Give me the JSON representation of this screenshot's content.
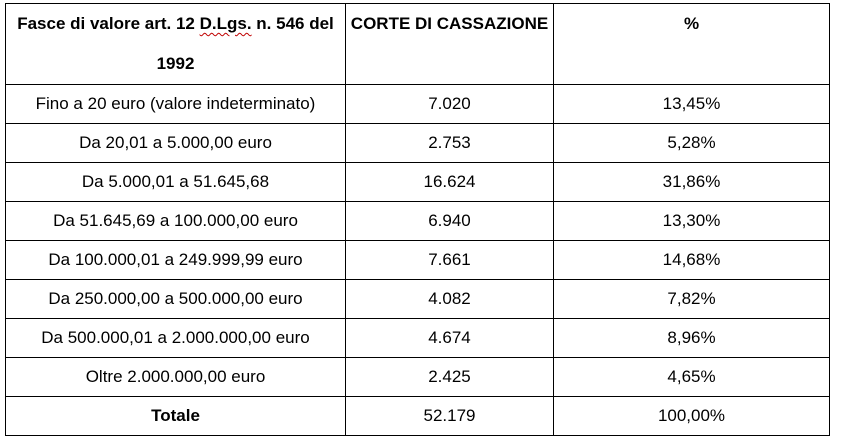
{
  "table": {
    "headers": {
      "col1_pre": "Fasce di valore art. 12 ",
      "col1_underlined": "D.Lgs.",
      "col1_post": " n. 546 del 1992",
      "col2": "CORTE DI CASSAZIONE",
      "col3": "%"
    },
    "rows": [
      {
        "range": "Fino a 20 euro (valore indeterminato)",
        "count": "7.020",
        "pct": "13,45%"
      },
      {
        "range": "Da 20,01 a 5.000,00 euro",
        "count": "2.753",
        "pct": "5,28%"
      },
      {
        "range": "Da 5.000,01 a 51.645,68",
        "count": "16.624",
        "pct": "31,86%"
      },
      {
        "range": "Da 51.645,69 a 100.000,00 euro",
        "count": "6.940",
        "pct": "13,30%"
      },
      {
        "range": "Da 100.000,01 a 249.999,99 euro",
        "count": "7.661",
        "pct": "14,68%"
      },
      {
        "range": "Da 250.000,00 a 500.000,00 euro",
        "count": "4.082",
        "pct": "7,82%"
      },
      {
        "range": "Da 500.000,01 a 2.000.000,00 euro",
        "count": "4.674",
        "pct": "8,96%"
      },
      {
        "range": "Oltre 2.000.000,00 euro",
        "count": "2.425",
        "pct": "4,65%"
      }
    ],
    "total": {
      "label": "Totale",
      "count": "52.179",
      "pct": "100,00%"
    }
  }
}
